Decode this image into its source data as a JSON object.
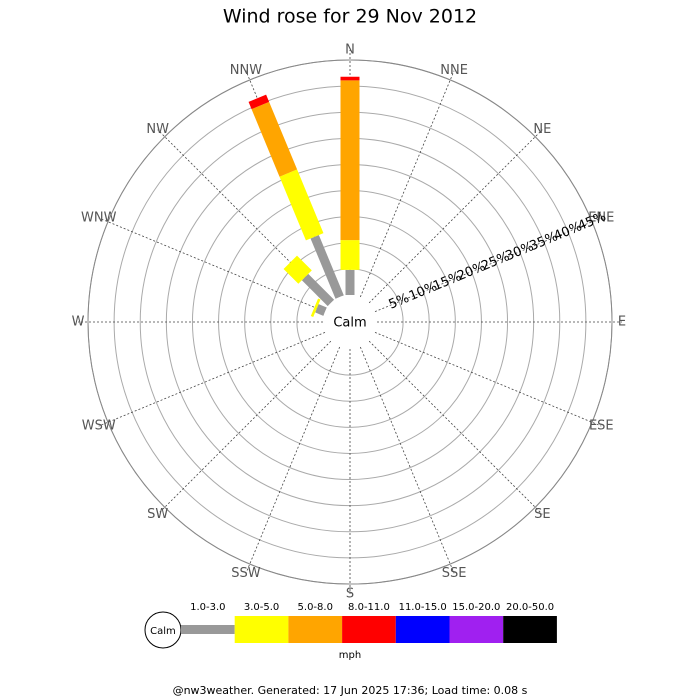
{
  "chart_data": {
    "type": "windrose",
    "title": "Wind rose for 29 Nov 2012",
    "directions": [
      "N",
      "NNE",
      "NE",
      "ENE",
      "E",
      "ESE",
      "SE",
      "SSE",
      "S",
      "SSW",
      "SW",
      "WSW",
      "W",
      "WNW",
      "NW",
      "NNW"
    ],
    "calm_label": "Calm",
    "rlim": [
      0,
      45
    ],
    "rticks": [
      {
        "value": 5,
        "label": "5%"
      },
      {
        "value": 10,
        "label": "10%"
      },
      {
        "value": 15,
        "label": "15%"
      },
      {
        "value": 20,
        "label": "20%"
      },
      {
        "value": 25,
        "label": "25%"
      },
      {
        "value": 30,
        "label": "30%"
      },
      {
        "value": 35,
        "label": "35%"
      },
      {
        "value": 40,
        "label": "40%"
      },
      {
        "value": 45,
        "label": "45%"
      }
    ],
    "series": [
      {
        "name": "1.0-3.0",
        "color": "#999999",
        "values": [
          4.8,
          0,
          0,
          0,
          0,
          0,
          0,
          0,
          0,
          0,
          0,
          0,
          0,
          1.7,
          7,
          12.5
        ]
      },
      {
        "name": "3.0-5.0",
        "color": "#ffff00",
        "values": [
          5.7,
          0,
          0,
          0,
          0,
          0,
          0,
          0,
          0,
          0,
          0,
          0,
          0,
          0.5,
          4,
          13.2
        ]
      },
      {
        "name": "5.0-8.0",
        "color": "#ffa500",
        "values": [
          30.6,
          0,
          0,
          0,
          0,
          0,
          0,
          0,
          0,
          0,
          0,
          0,
          0,
          0,
          0,
          14
        ]
      },
      {
        "name": "8.0-11.0",
        "color": "#ff0000",
        "values": [
          0.7,
          0,
          0,
          0,
          0,
          0,
          0,
          0,
          0,
          0,
          0,
          0,
          0,
          0,
          0,
          1.5
        ]
      },
      {
        "name": "11.0-15.0",
        "color": "#0000ff",
        "values": [
          0,
          0,
          0,
          0,
          0,
          0,
          0,
          0,
          0,
          0,
          0,
          0,
          0,
          0,
          0,
          0
        ]
      },
      {
        "name": "15.0-20.0",
        "color": "#a020f0",
        "values": [
          0,
          0,
          0,
          0,
          0,
          0,
          0,
          0,
          0,
          0,
          0,
          0,
          0,
          0,
          0,
          0
        ]
      },
      {
        "name": "20.0-50.0",
        "color": "#000000",
        "values": [
          0,
          0,
          0,
          0,
          0,
          0,
          0,
          0,
          0,
          0,
          0,
          0,
          0,
          0,
          0,
          0
        ]
      }
    ],
    "legend_unit": "mph",
    "footer": "@nw3weather. Generated: 17 Jun 2025 17:36; Load time: 0.08 s"
  }
}
